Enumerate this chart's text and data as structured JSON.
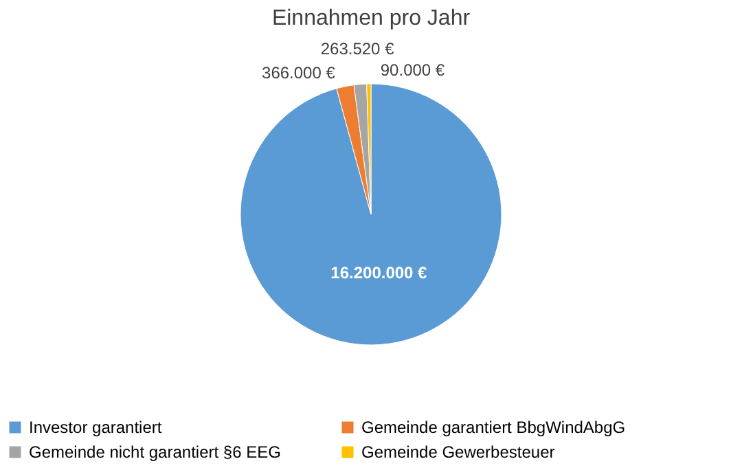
{
  "chart_data": {
    "type": "pie",
    "title": "Einnahmen pro Jahr",
    "categories": [
      "Investor garantiert",
      "Gemeinde garantiert BbgWindAbgG",
      "Gemeinde nicht garantiert §6 EEG",
      "Gemeinde Gewerbesteuer"
    ],
    "values": [
      16200000,
      366000,
      263520,
      90000
    ],
    "colors": [
      "#5b9bd5",
      "#ed7d31",
      "#a5a5a5",
      "#ffc000"
    ],
    "value_labels": [
      "16.200.000 €",
      "366.000 €",
      "263.520 €",
      "90.000 €"
    ],
    "legend": "bottom"
  }
}
